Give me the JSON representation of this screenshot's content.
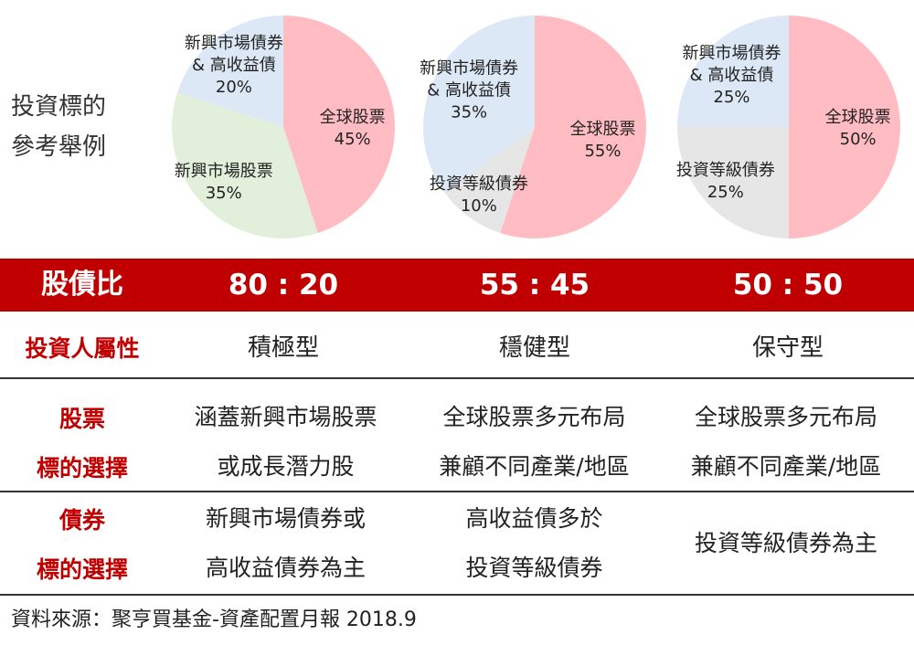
{
  "side_label": [
    "投資標的",
    "參考舉例"
  ],
  "colors": {
    "equity_global": "#ffbcc3",
    "bond_em_high_yield": "#dce8f5",
    "equity_em": "#e2efda",
    "bond_investment_grade": "#e7e6e6",
    "band": "#c00000",
    "header_text": "#c00000"
  },
  "chart_data": [
    {
      "type": "pie",
      "slices": [
        {
          "name": "全球股票",
          "value": 45,
          "label_pct": "45%",
          "color": "#ffbcc3"
        },
        {
          "name": "新興市場股票",
          "value": 35,
          "label_pct": "35%",
          "color": "#e2efda"
        },
        {
          "name": "新興市場債券 & 高收益債",
          "label_lines": [
            "新興市場債券",
            "& 高收益債"
          ],
          "value": 20,
          "label_pct": "20%",
          "color": "#dce8f5"
        }
      ]
    },
    {
      "type": "pie",
      "slices": [
        {
          "name": "全球股票",
          "value": 55,
          "label_pct": "55%",
          "color": "#ffbcc3"
        },
        {
          "name": "投資等級債券",
          "value": 10,
          "label_pct": "10%",
          "color": "#e7e6e6"
        },
        {
          "name": "新興市場債券 & 高收益債",
          "label_lines": [
            "新興市場債券",
            "& 高收益債"
          ],
          "value": 35,
          "label_pct": "35%",
          "color": "#dce8f5"
        }
      ]
    },
    {
      "type": "pie",
      "slices": [
        {
          "name": "全球股票",
          "value": 50,
          "label_pct": "50%",
          "color": "#ffbcc3"
        },
        {
          "name": "投資等級債券",
          "value": 25,
          "label_pct": "25%",
          "color": "#e7e6e6"
        },
        {
          "name": "新興市場債券 & 高收益債",
          "label_lines": [
            "新興市場債券",
            "& 高收益債"
          ],
          "value": 25,
          "label_pct": "25%",
          "color": "#dce8f5"
        }
      ]
    }
  ],
  "table": {
    "band": {
      "label": "股債比",
      "ratios": [
        "80 : 20",
        "55 : 45",
        "50 : 50"
      ]
    },
    "investor_type": {
      "label": "投資人屬性",
      "values": [
        "積極型",
        "穩健型",
        "保守型"
      ]
    },
    "equity_choice": {
      "label": [
        "股票",
        "標的選擇"
      ],
      "values": [
        [
          "涵蓋新興市場股票",
          "或成長潛力股"
        ],
        [
          "全球股票多元布局",
          "兼顧不同產業/地區"
        ],
        [
          "全球股票多元布局",
          "兼顧不同產業/地區"
        ]
      ]
    },
    "bond_choice": {
      "label": [
        "債券",
        "標的選擇"
      ],
      "values": [
        [
          "新興市場債券或",
          "高收益債券為主"
        ],
        [
          "高收益債多於",
          "投資等級債券"
        ],
        [
          "投資等級債券為主"
        ]
      ]
    }
  },
  "footer": "資料來源：聚亨買基金-資產配置月報 2018.9"
}
